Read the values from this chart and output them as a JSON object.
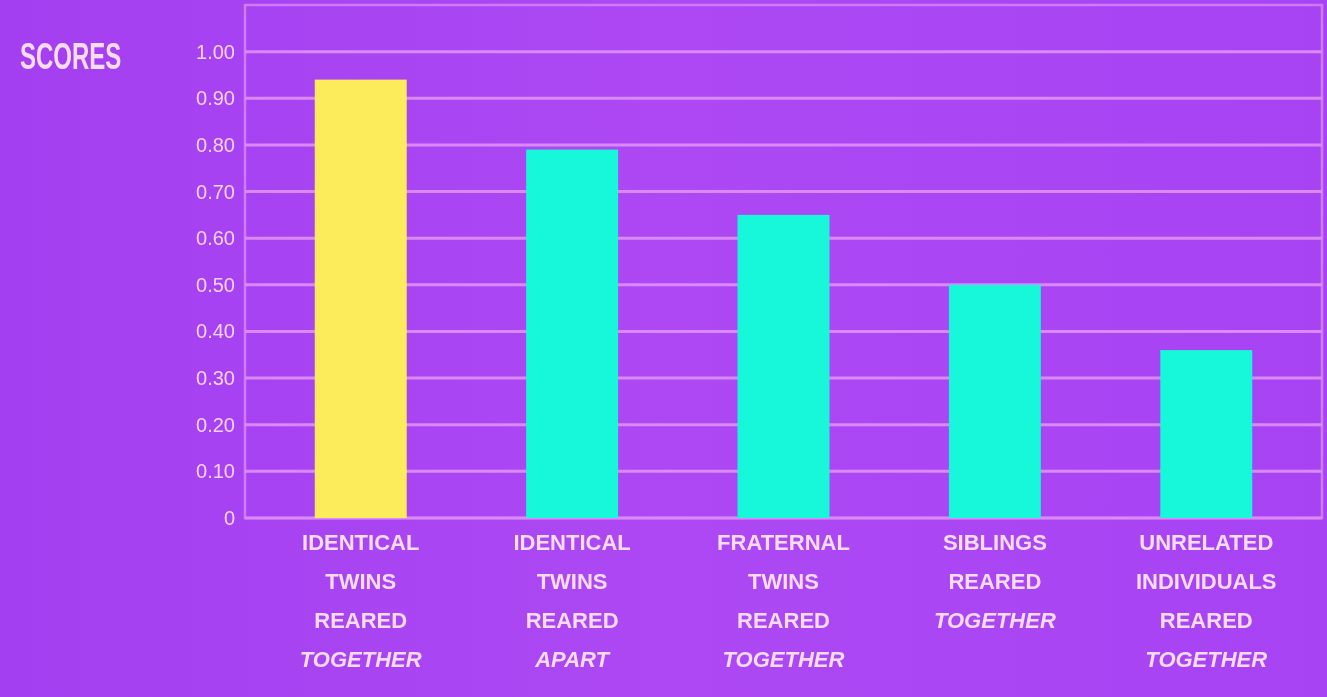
{
  "chart_data": {
    "type": "bar",
    "ylabel": "SCORES",
    "categories": [
      "IDENTICAL\nTWINS\nREARED\nTOGETHER",
      "IDENTICAL\nTWINS\nREARED\nAPART",
      "FRATERNAL\nTWINS\nREARED\nTOGETHER",
      "SIBLINGS\nREARED\nTOGETHER",
      "UNRELATED\nINDIVIDUALS\nREARED\nTOGETHER"
    ],
    "values": [
      0.94,
      0.79,
      0.65,
      0.5,
      0.36
    ],
    "colors": [
      "#fcec5c",
      "#17f7da",
      "#17f7da",
      "#17f7da",
      "#17f7da"
    ],
    "ylim": [
      0,
      1.1
    ],
    "yticks": [
      0,
      {
        "value": 0.1,
        "label": "0.10"
      },
      {
        "value": 0.2,
        "label": "0.20"
      },
      {
        "value": 0.3,
        "label": "0.30"
      },
      {
        "value": 0.4,
        "label": "0.40"
      },
      {
        "value": 0.5,
        "label": "0.50"
      },
      {
        "value": 0.6,
        "label": "0.60"
      },
      {
        "value": 0.7,
        "label": "0.70"
      },
      {
        "value": 0.8,
        "label": "0.80"
      },
      {
        "value": 0.9,
        "label": "0.90"
      },
      {
        "value": 1,
        "label": "1.00"
      }
    ],
    "grid": "y"
  }
}
